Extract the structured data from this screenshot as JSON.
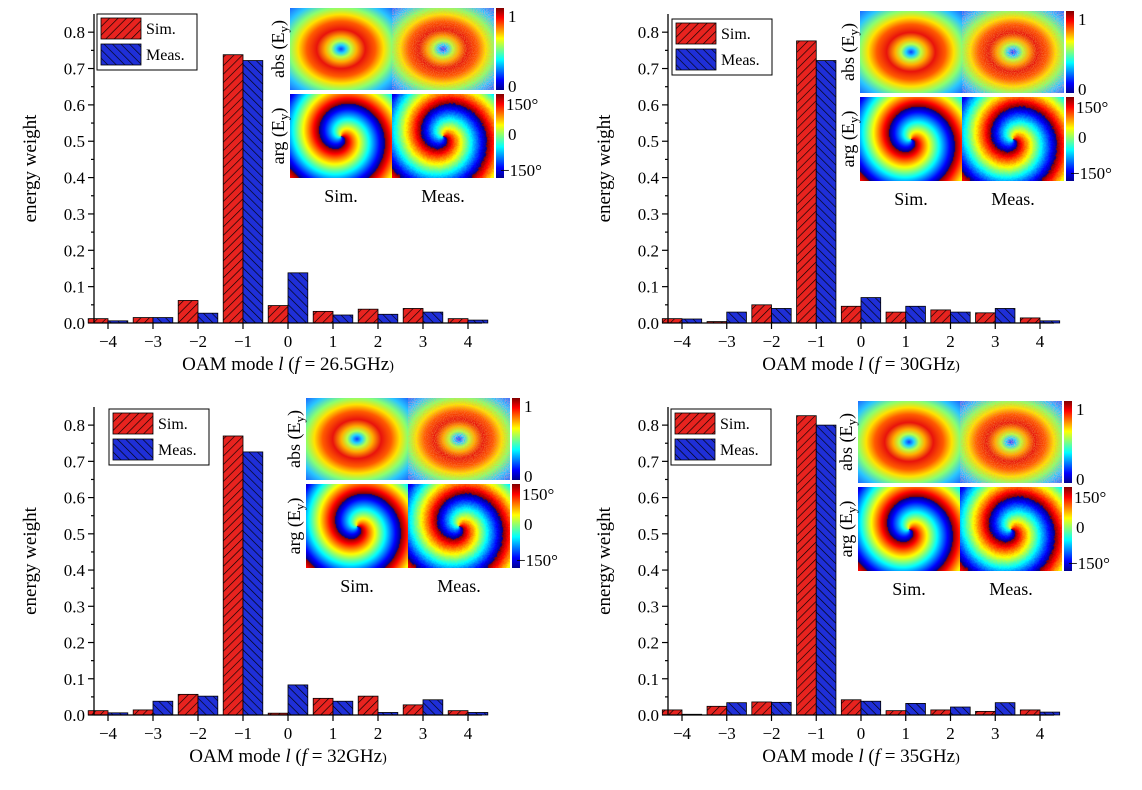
{
  "colors": {
    "sim": "#e8231f",
    "meas": "#1f2fd8"
  },
  "legend": {
    "sim_label": "Sim.",
    "meas_label": "Meas."
  },
  "inset": {
    "abs_label": "abs (E",
    "abs_sub": "y",
    "arg_label": "arg (E",
    "arg_sub": "y",
    "close_paren": ")",
    "sim_caption": "Sim.",
    "meas_caption": "Meas.",
    "abs_max": "1",
    "abs_min": "0",
    "arg_max": "150°",
    "arg_mid": "0",
    "arg_min": "−150°"
  },
  "chart_data": [
    {
      "type": "bar",
      "ylabel": "energy weight",
      "xlabel_prefix": "OAM mode ",
      "xlabel_var": "l",
      "xlabel_freq": "f",
      "xlabel_value": " = 26.5GHz",
      "categories": [
        "−4",
        "−3",
        "−2",
        "−1",
        "0",
        "1",
        "2",
        "3",
        "4"
      ],
      "yticks": [
        "0.0",
        "0.1",
        "0.2",
        "0.3",
        "0.4",
        "0.5",
        "0.6",
        "0.7",
        "0.8"
      ],
      "ylim": [
        0,
        0.85
      ],
      "series": [
        {
          "name": "Sim.",
          "values": [
            0.012,
            0.015,
            0.062,
            0.738,
            0.048,
            0.032,
            0.038,
            0.04,
            0.012
          ]
        },
        {
          "name": "Meas.",
          "values": [
            0.006,
            0.015,
            0.027,
            0.722,
            0.138,
            0.022,
            0.024,
            0.03,
            0.008
          ]
        }
      ]
    },
    {
      "type": "bar",
      "ylabel": "energy weight",
      "xlabel_prefix": "OAM mode ",
      "xlabel_var": "l",
      "xlabel_freq": "f",
      "xlabel_value": " = 30GHz",
      "categories": [
        "−4",
        "−3",
        "−2",
        "−1",
        "0",
        "1",
        "2",
        "3",
        "4"
      ],
      "yticks": [
        "0.0",
        "0.1",
        "0.2",
        "0.3",
        "0.4",
        "0.5",
        "0.6",
        "0.7",
        "0.8"
      ],
      "ylim": [
        0,
        0.85
      ],
      "series": [
        {
          "name": "Sim.",
          "values": [
            0.012,
            0.004,
            0.05,
            0.776,
            0.046,
            0.03,
            0.036,
            0.028,
            0.014
          ]
        },
        {
          "name": "Meas.",
          "values": [
            0.011,
            0.03,
            0.04,
            0.722,
            0.07,
            0.046,
            0.03,
            0.04,
            0.006
          ]
        }
      ]
    },
    {
      "type": "bar",
      "ylabel": "energy weight",
      "xlabel_prefix": "OAM mode ",
      "xlabel_var": "l",
      "xlabel_freq": "f",
      "xlabel_value": " = 32GHz",
      "categories": [
        "−4",
        "−3",
        "−2",
        "−1",
        "0",
        "1",
        "2",
        "3",
        "4"
      ],
      "yticks": [
        "0.0",
        "0.1",
        "0.2",
        "0.3",
        "0.4",
        "0.5",
        "0.6",
        "0.7",
        "0.8"
      ],
      "ylim": [
        0,
        0.85
      ],
      "series": [
        {
          "name": "Sim.",
          "values": [
            0.012,
            0.014,
            0.057,
            0.77,
            0.005,
            0.046,
            0.052,
            0.028,
            0.012
          ]
        },
        {
          "name": "Meas.",
          "values": [
            0.006,
            0.038,
            0.052,
            0.726,
            0.083,
            0.038,
            0.007,
            0.042,
            0.007
          ]
        }
      ]
    },
    {
      "type": "bar",
      "ylabel": "energy weight",
      "xlabel_prefix": "OAM mode ",
      "xlabel_var": "l",
      "xlabel_freq": "f",
      "xlabel_value": " = 35GHz",
      "categories": [
        "−4",
        "−3",
        "−2",
        "−1",
        "0",
        "1",
        "2",
        "3",
        "4"
      ],
      "yticks": [
        "0.0",
        "0.1",
        "0.2",
        "0.3",
        "0.4",
        "0.5",
        "0.6",
        "0.7",
        "0.8"
      ],
      "ylim": [
        0,
        0.85
      ],
      "series": [
        {
          "name": "Sim.",
          "values": [
            0.014,
            0.024,
            0.036,
            0.826,
            0.042,
            0.012,
            0.014,
            0.01,
            0.014
          ]
        },
        {
          "name": "Meas.",
          "values": [
            0.002,
            0.034,
            0.035,
            0.8,
            0.038,
            0.032,
            0.022,
            0.034,
            0.008
          ]
        }
      ]
    }
  ]
}
